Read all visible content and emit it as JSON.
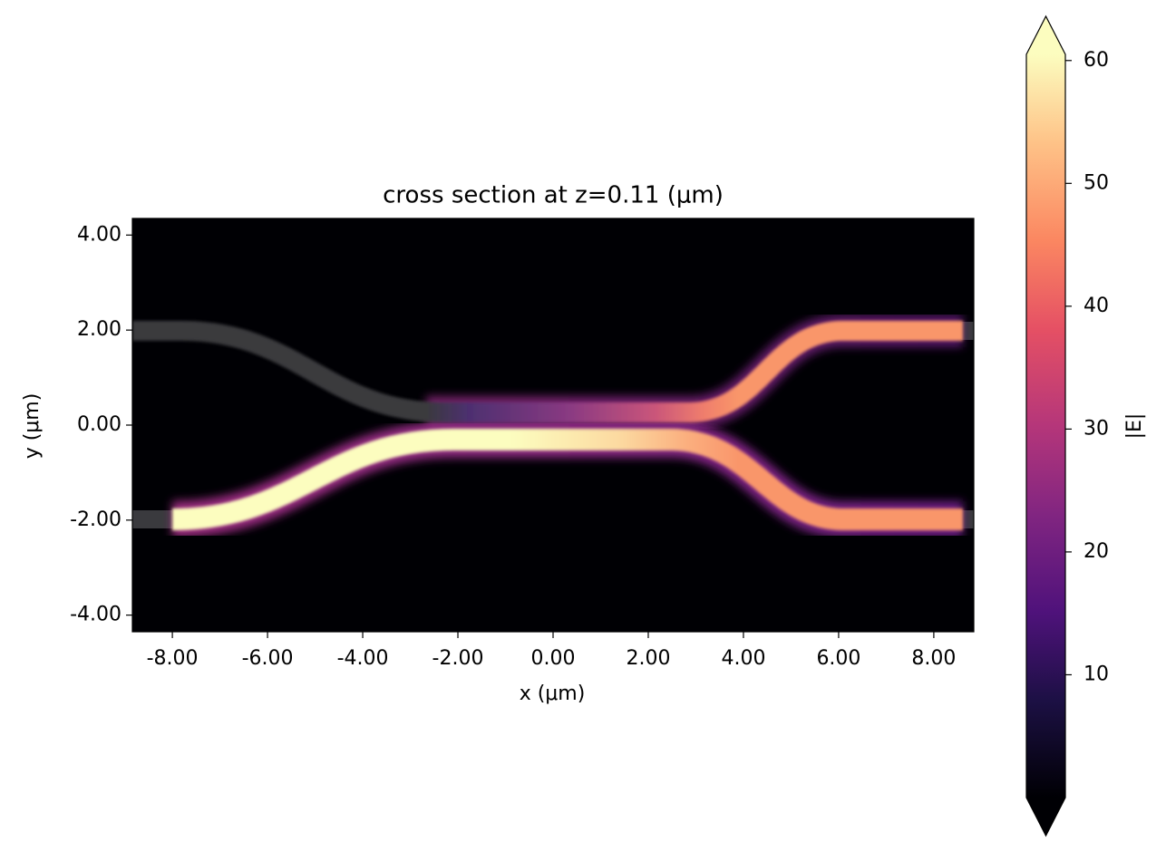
{
  "chart_data": {
    "type": "heatmap",
    "title": "cross section at z=0.11 (μm)",
    "x_label": "x (μm)",
    "y_label": "y (μm)",
    "xlim": [
      -8.84,
      8.84
    ],
    "ylim": [
      -4.35,
      4.35
    ],
    "xticks": [
      {
        "value": -8,
        "label": "-8.00"
      },
      {
        "value": -6,
        "label": "-6.00"
      },
      {
        "value": -4,
        "label": "-4.00"
      },
      {
        "value": -2,
        "label": "-2.00"
      },
      {
        "value": 0,
        "label": "0.00"
      },
      {
        "value": 2,
        "label": "2.00"
      },
      {
        "value": 4,
        "label": "4.00"
      },
      {
        "value": 6,
        "label": "6.00"
      },
      {
        "value": 8,
        "label": "8.00"
      }
    ],
    "yticks": [
      {
        "value": -4,
        "label": "-4.00"
      },
      {
        "value": -2,
        "label": "-2.00"
      },
      {
        "value": 0,
        "label": "0.00"
      },
      {
        "value": 2,
        "label": "2.00"
      },
      {
        "value": 4,
        "label": "4.00"
      }
    ],
    "colorbar": {
      "label": "|E|",
      "colormap": "magma",
      "lim": [
        0,
        60.5
      ],
      "ticks": [
        10,
        20,
        30,
        40,
        50,
        60
      ],
      "extend": "both"
    }
  }
}
